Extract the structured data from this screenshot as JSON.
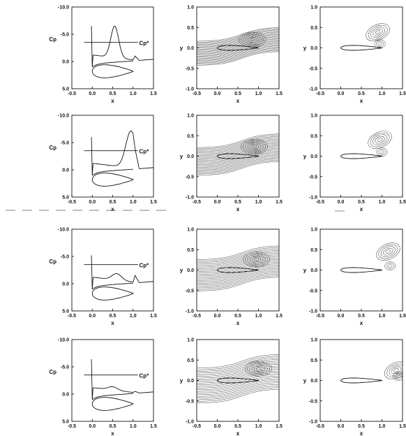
{
  "figure": {
    "separator_style": "dashed",
    "rows": [
      {
        "cp": {
          "xlabel": "x",
          "ylabel": "Cp",
          "cpstar_label": "Cp*",
          "xticks": [
            "-0.5",
            "0.0",
            "0.5",
            "1.0",
            "1.5"
          ],
          "yticks": [
            "-10.0",
            "-5.0",
            "0.0",
            "5.0"
          ],
          "cpstar": -3.5
        },
        "psi": {
          "xlabel": "x",
          "ylabel": "y",
          "xticks": [
            "-0.5",
            "0.0",
            "0.5",
            "1.0",
            "1.5"
          ],
          "yticks": [
            "1.0",
            "0.5",
            "0.0",
            "-0.5",
            "-1.0"
          ]
        },
        "vort": {
          "xlabel": "x",
          "ylabel": "y",
          "xticks": [
            "-0.5",
            "0.0",
            "0.5",
            "1.0",
            "1.5"
          ],
          "yticks": [
            "1.0",
            "0.5",
            "0.0",
            "-0.5",
            "-1.0"
          ]
        }
      },
      {
        "cp": {
          "xlabel": "x",
          "ylabel": "Cp",
          "cpstar_label": "Cp*",
          "xticks": [
            "-0.5",
            "0.0",
            "0.5",
            "1.0",
            "1.5"
          ],
          "yticks": [
            "-10.0",
            "-5.0",
            "0.0",
            "5.0"
          ],
          "cpstar": -3.5
        },
        "psi": {
          "xlabel": "x",
          "ylabel": "y",
          "xticks": [
            "-0.5",
            "0.0",
            "0.5",
            "1.0",
            "1.5"
          ],
          "yticks": [
            "1.0",
            "0.5",
            "0.0",
            "-0.5",
            "-1.0"
          ]
        },
        "vort": {
          "xlabel": "x",
          "ylabel": "y",
          "xticks": [
            "-0.5",
            "0.0",
            "0.5",
            "1.0",
            "1.5"
          ],
          "yticks": [
            "1.0",
            "0.5",
            "0.0",
            "-0.5",
            "-1.0"
          ]
        }
      },
      {
        "cp": {
          "xlabel": "x",
          "ylabel": "Cp",
          "cpstar_label": "Cp*",
          "xticks": [
            "-0.5",
            "0.0",
            "0.5",
            "1.0",
            "1.5"
          ],
          "yticks": [
            "-10.0",
            "-5.0",
            "0.0",
            "5.0"
          ],
          "cpstar": -3.5
        },
        "psi": {
          "xlabel": "x",
          "ylabel": "y",
          "xticks": [
            "-0.5",
            "0.0",
            "0.5",
            "1.0",
            "1.5"
          ],
          "yticks": [
            "1.0",
            "0.5",
            "0.0",
            "-0.5",
            "-1.0"
          ]
        },
        "vort": {
          "xlabel": "x",
          "ylabel": "y",
          "xticks": [
            "-0.5",
            "0.0",
            "0.5",
            "1.0",
            "1.5"
          ],
          "yticks": [
            "1.0",
            "0.5",
            "0.0",
            "-0.5",
            "-1.0"
          ]
        }
      },
      {
        "cp": {
          "xlabel": "x",
          "ylabel": "Cp",
          "cpstar_label": "Cp*",
          "xticks": [
            "-0.5",
            "0.0",
            "0.5",
            "1.0",
            "1.5"
          ],
          "yticks": [
            "-10.0",
            "-5.0",
            "0.0",
            "5.0"
          ],
          "cpstar": -3.5
        },
        "psi": {
          "xlabel": "x",
          "ylabel": "y",
          "xticks": [
            "-0.5",
            "0.0",
            "0.5",
            "1.0",
            "1.5"
          ],
          "yticks": [
            "1.0",
            "0.5",
            "0.0",
            "-0.5",
            "-1.0"
          ]
        },
        "vort": {
          "xlabel": "x",
          "ylabel": "y",
          "xticks": [
            "-0.5",
            "0.0",
            "0.5",
            "1.0",
            "1.5"
          ],
          "yticks": [
            "1.0",
            "0.5",
            "0.0",
            "-0.5",
            "-1.0"
          ]
        }
      }
    ]
  }
}
